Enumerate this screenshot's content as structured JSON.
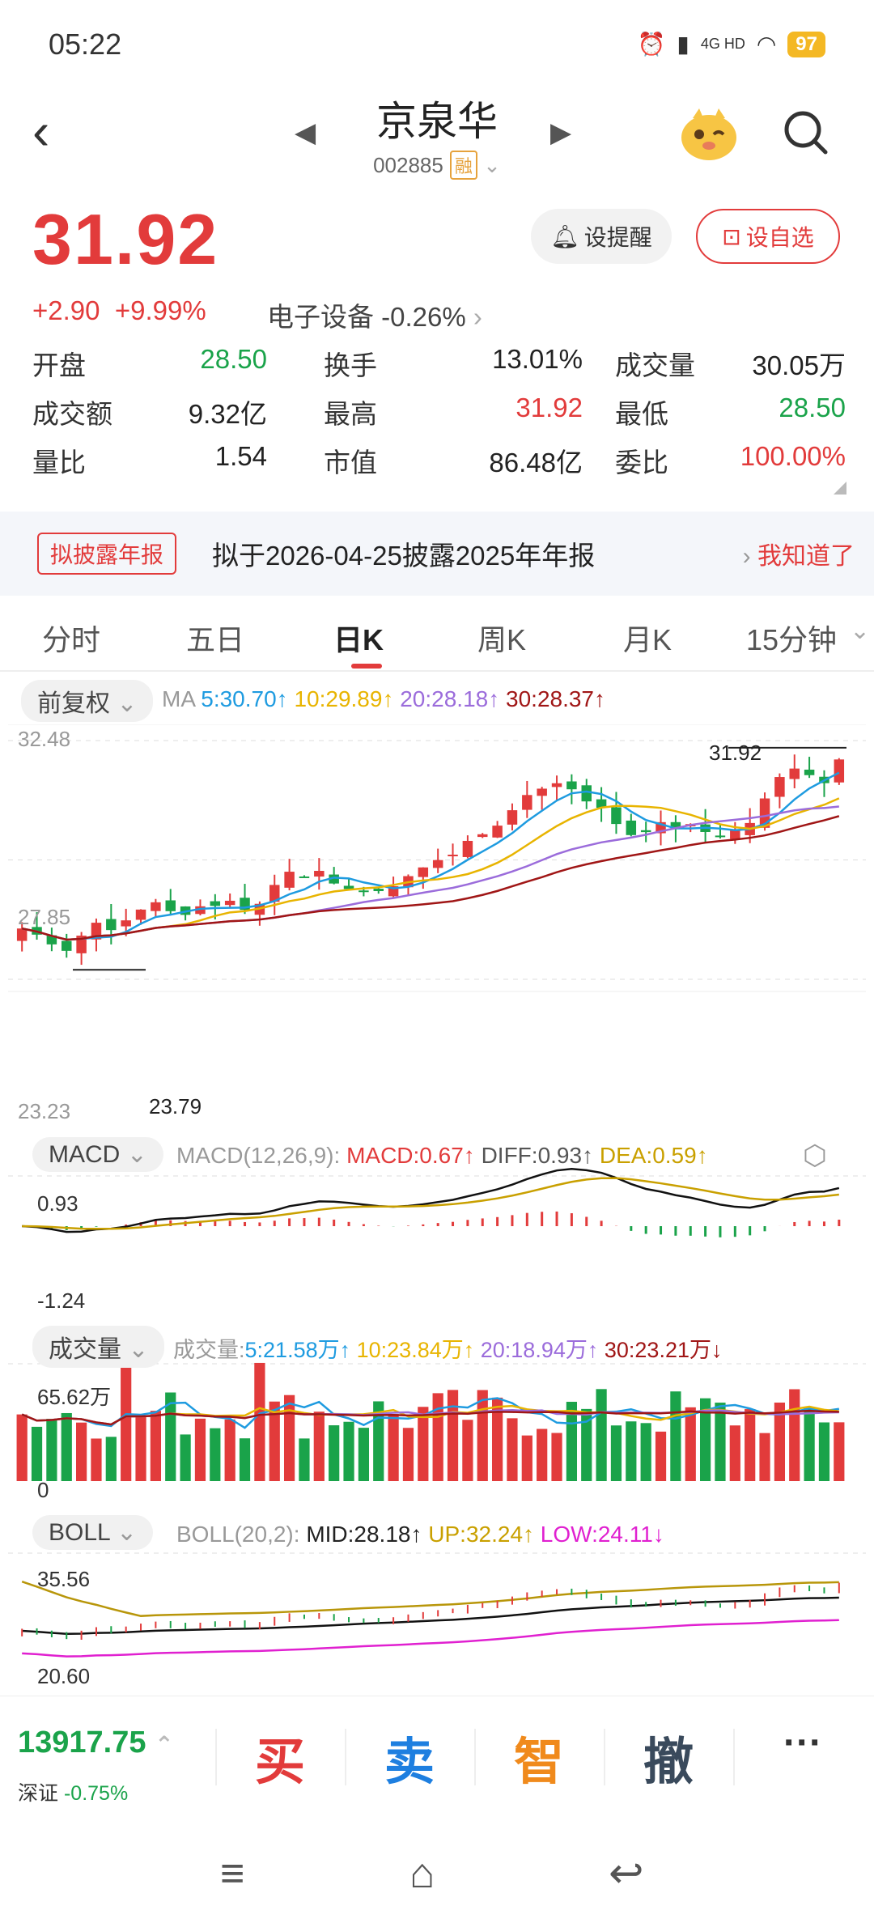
{
  "status": {
    "time": "05:22",
    "network": "4G HD",
    "battery": "97"
  },
  "header": {
    "back_icon": "‹",
    "prev_arrow": "◀",
    "next_arrow": "▶",
    "stock_name": "京泉华",
    "stock_code": "002885",
    "margin_tag": "融"
  },
  "quote": {
    "price": "31.92",
    "change": "+2.90",
    "change_pct": "+9.99%",
    "sector": "电子设备",
    "sector_change": "-0.26%",
    "alert_button": "设提醒",
    "favorite_button": "设自选"
  },
  "stats": [
    {
      "k": "开盘",
      "v": "28.50",
      "c": "green"
    },
    {
      "k": "换手",
      "v": "13.01%",
      "c": "black"
    },
    {
      "k": "成交量",
      "v": "30.05万",
      "c": "black"
    },
    {
      "k": "成交额",
      "v": "9.32亿",
      "c": "black"
    },
    {
      "k": "最高",
      "v": "31.92",
      "c": "red"
    },
    {
      "k": "最低",
      "v": "28.50",
      "c": "green"
    },
    {
      "k": "量比",
      "v": "1.54",
      "c": "black"
    },
    {
      "k": "市值",
      "v": "86.48亿",
      "c": "black"
    },
    {
      "k": "委比",
      "v": "100.00%",
      "c": "red"
    }
  ],
  "notice": {
    "tag": "拟披露年报",
    "text": "拟于2026-04-25披露2025年年报",
    "action": "我知道了"
  },
  "tabs": [
    "分时",
    "五日",
    "日K",
    "周K",
    "月K",
    "15分钟"
  ],
  "active_tab": 2,
  "ma_bar": {
    "adjust": "前复权",
    "label": "MA",
    "ma5": "5:30.70↑",
    "ma10": "10:29.89↑",
    "ma20": "20:28.18↑",
    "ma30": "30:28.37↑"
  },
  "kline": {
    "ymax": "32.48",
    "ymid": "27.85",
    "ymin": "23.23",
    "high_label": "31.92",
    "low_label": "23.79"
  },
  "macd_bar": {
    "name": "MACD",
    "params": "MACD(12,26,9):",
    "macd": "MACD:0.67↑",
    "diff": "DIFF:0.93↑",
    "dea": "DEA:0.59↑",
    "ytop": "0.93",
    "ybot": "-1.24"
  },
  "vol_bar": {
    "name": "成交量",
    "label": "成交量:",
    "v5": "5:21.58万↑",
    "v10": "10:23.84万↑",
    "v20": "20:18.94万↑",
    "v30": "30:23.21万↓",
    "ytop": "65.62万",
    "ybot": "0"
  },
  "boll_bar": {
    "name": "BOLL",
    "params": "BOLL(20,2):",
    "mid": "MID:28.18↑",
    "up": "UP:32.24↑",
    "low": "LOW:24.11↓",
    "ytop": "35.56",
    "ybot": "20.60"
  },
  "bottom": {
    "index_value": "13917.75",
    "index_name": "深证",
    "index_change": "-0.75%",
    "buy": "买",
    "sell": "卖",
    "smart": "智",
    "cancel": "撤",
    "more": "···"
  },
  "colors": {
    "up": "#e23b3b",
    "down": "#1aa34a",
    "ma5": "#1e9be0",
    "ma10": "#e8b400",
    "ma20": "#9b6cdb",
    "ma30": "#a01616"
  }
}
